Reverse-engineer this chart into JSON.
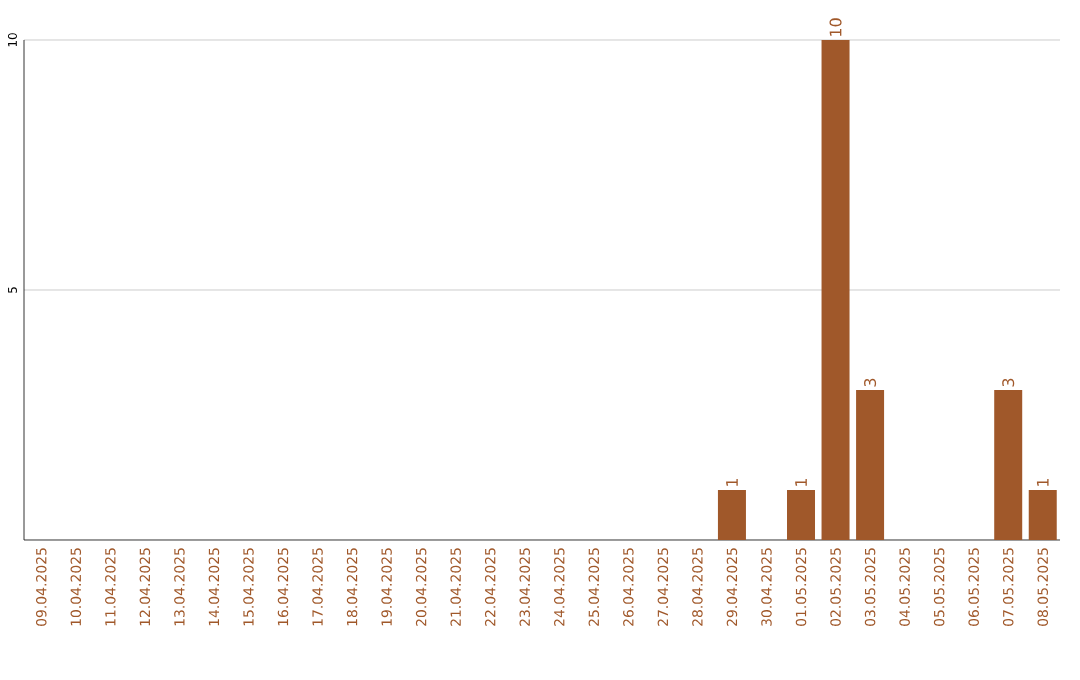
{
  "chart_data": {
    "type": "bar",
    "categories": [
      "09.04.2025",
      "10.04.2025",
      "11.04.2025",
      "12.04.2025",
      "13.04.2025",
      "14.04.2025",
      "15.04.2025",
      "16.04.2025",
      "17.04.2025",
      "18.04.2025",
      "19.04.2025",
      "20.04.2025",
      "21.04.2025",
      "22.04.2025",
      "23.04.2025",
      "24.04.2025",
      "25.04.2025",
      "26.04.2025",
      "27.04.2025",
      "28.04.2025",
      "29.04.2025",
      "30.04.2025",
      "01.05.2025",
      "02.05.2025",
      "03.05.2025",
      "04.05.2025",
      "05.05.2025",
      "06.05.2025",
      "07.05.2025",
      "08.05.2025"
    ],
    "values": [
      0,
      0,
      0,
      0,
      0,
      0,
      0,
      0,
      0,
      0,
      0,
      0,
      0,
      0,
      0,
      0,
      0,
      0,
      0,
      0,
      1,
      0,
      1,
      10,
      3,
      0,
      0,
      0,
      3,
      1
    ],
    "value_labels": [
      null,
      null,
      null,
      null,
      null,
      null,
      null,
      null,
      null,
      null,
      null,
      null,
      null,
      null,
      null,
      null,
      null,
      null,
      null,
      null,
      "1",
      null,
      "1",
      "10",
      "3",
      null,
      null,
      null,
      "3",
      "1"
    ],
    "color": "#a0582a",
    "ylim": [
      0,
      10
    ],
    "yticks": [
      5,
      10
    ],
    "grid": "y"
  }
}
